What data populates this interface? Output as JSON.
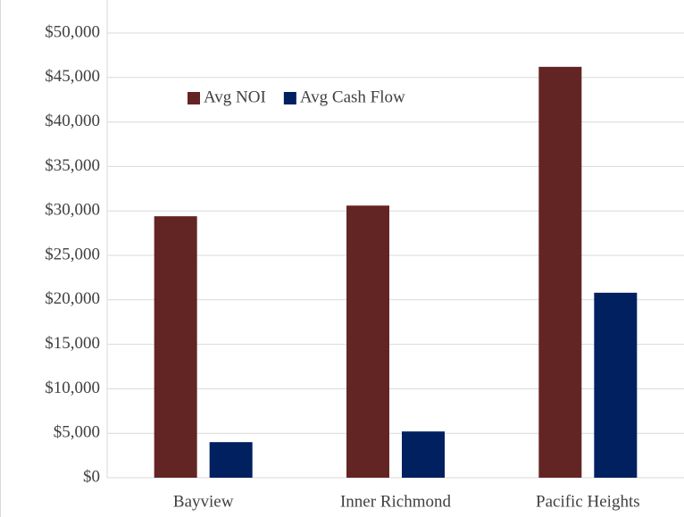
{
  "chart_data": {
    "type": "bar",
    "categories": [
      "Bayview",
      "Inner Richmond",
      "Pacific Heights"
    ],
    "series": [
      {
        "name": "Avg NOI",
        "color": "#632523",
        "values": [
          29400,
          30600,
          46200
        ]
      },
      {
        "name": "Avg Cash Flow",
        "color": "#002060",
        "values": [
          4000,
          5200,
          20800
        ]
      }
    ],
    "ylim": [
      0,
      50000
    ],
    "yticks": [
      {
        "value": 0,
        "label": "$0"
      },
      {
        "value": 5000,
        "label": "$5,000"
      },
      {
        "value": 10000,
        "label": "$10,000"
      },
      {
        "value": 15000,
        "label": "$15,000"
      },
      {
        "value": 20000,
        "label": "$20,000"
      },
      {
        "value": 25000,
        "label": "$25,000"
      },
      {
        "value": 30000,
        "label": "$30,000"
      },
      {
        "value": 35000,
        "label": "$35,000"
      },
      {
        "value": 40000,
        "label": "$40,000"
      },
      {
        "value": 45000,
        "label": "$45,000"
      },
      {
        "value": 50000,
        "label": "$50,000"
      }
    ],
    "grid": true,
    "legend": "top"
  }
}
